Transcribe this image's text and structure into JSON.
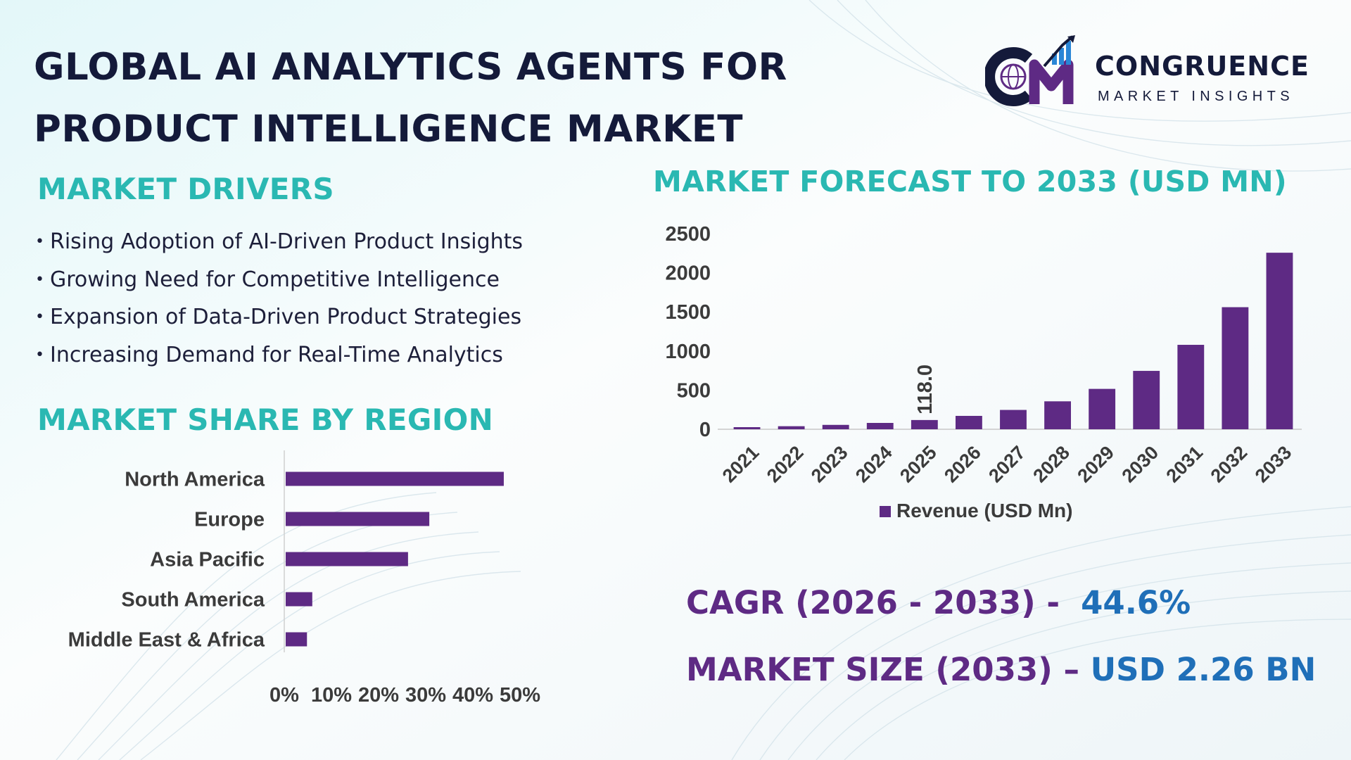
{
  "title_lines": [
    "GLOBAL AI ANALYTICS AGENTS FOR",
    "PRODUCT INTELLIGENCE MARKET"
  ],
  "brand": {
    "name": "CONGRUENCE",
    "tagline": "MARKET INSIGHTS",
    "color": "#5e2a84",
    "accent": "#2a86d6"
  },
  "drivers": {
    "heading": "MARKET DRIVERS",
    "items": [
      "Rising Adoption of AI-Driven Product Insights",
      "Growing Need for Competitive Intelligence",
      "Expansion of Data-Driven Product Strategies",
      "Increasing Demand for Real-Time Analytics"
    ]
  },
  "stats": {
    "cagr_label": "CAGR (2026 - 2033) -",
    "cagr_value": "44.6%",
    "size_label": "MARKET SIZE (2033) –",
    "size_value": "USD 2.26 BN"
  },
  "colors": {
    "heading": "#2ab8b2",
    "bar": "#5e2a84",
    "value": "#1f6fb8"
  },
  "chart_data": [
    {
      "type": "bar",
      "title": "MARKET FORECAST TO 2033 (USD MN)",
      "categories": [
        "2021",
        "2022",
        "2023",
        "2024",
        "2025",
        "2026",
        "2027",
        "2028",
        "2029",
        "2030",
        "2031",
        "2032",
        "2033"
      ],
      "series": [
        {
          "name": "Revenue (USD Mn)",
          "values": [
            27,
            39,
            56,
            81,
            118,
            171,
            247,
            357,
            516,
            746,
            1079,
            1560,
            2256
          ]
        }
      ],
      "data_labels": [
        {
          "index": 4,
          "text": "118.0"
        }
      ],
      "ylim": [
        0,
        2500
      ],
      "yticks": [
        0,
        500,
        1000,
        1500,
        2000,
        2500
      ],
      "grid": false,
      "legend": "bottom"
    },
    {
      "type": "bar",
      "orientation": "horizontal",
      "title": "MARKET SHARE BY REGION",
      "categories": [
        "North America",
        "Europe",
        "Asia Pacific",
        "South America",
        "Middle East & Africa"
      ],
      "values": [
        41,
        27,
        23,
        5,
        4
      ],
      "unit": "%",
      "xlim": [
        0,
        50
      ],
      "xticks": [
        "0%",
        "10%",
        "20%",
        "30%",
        "40%",
        "50%"
      ],
      "grid": false
    }
  ]
}
